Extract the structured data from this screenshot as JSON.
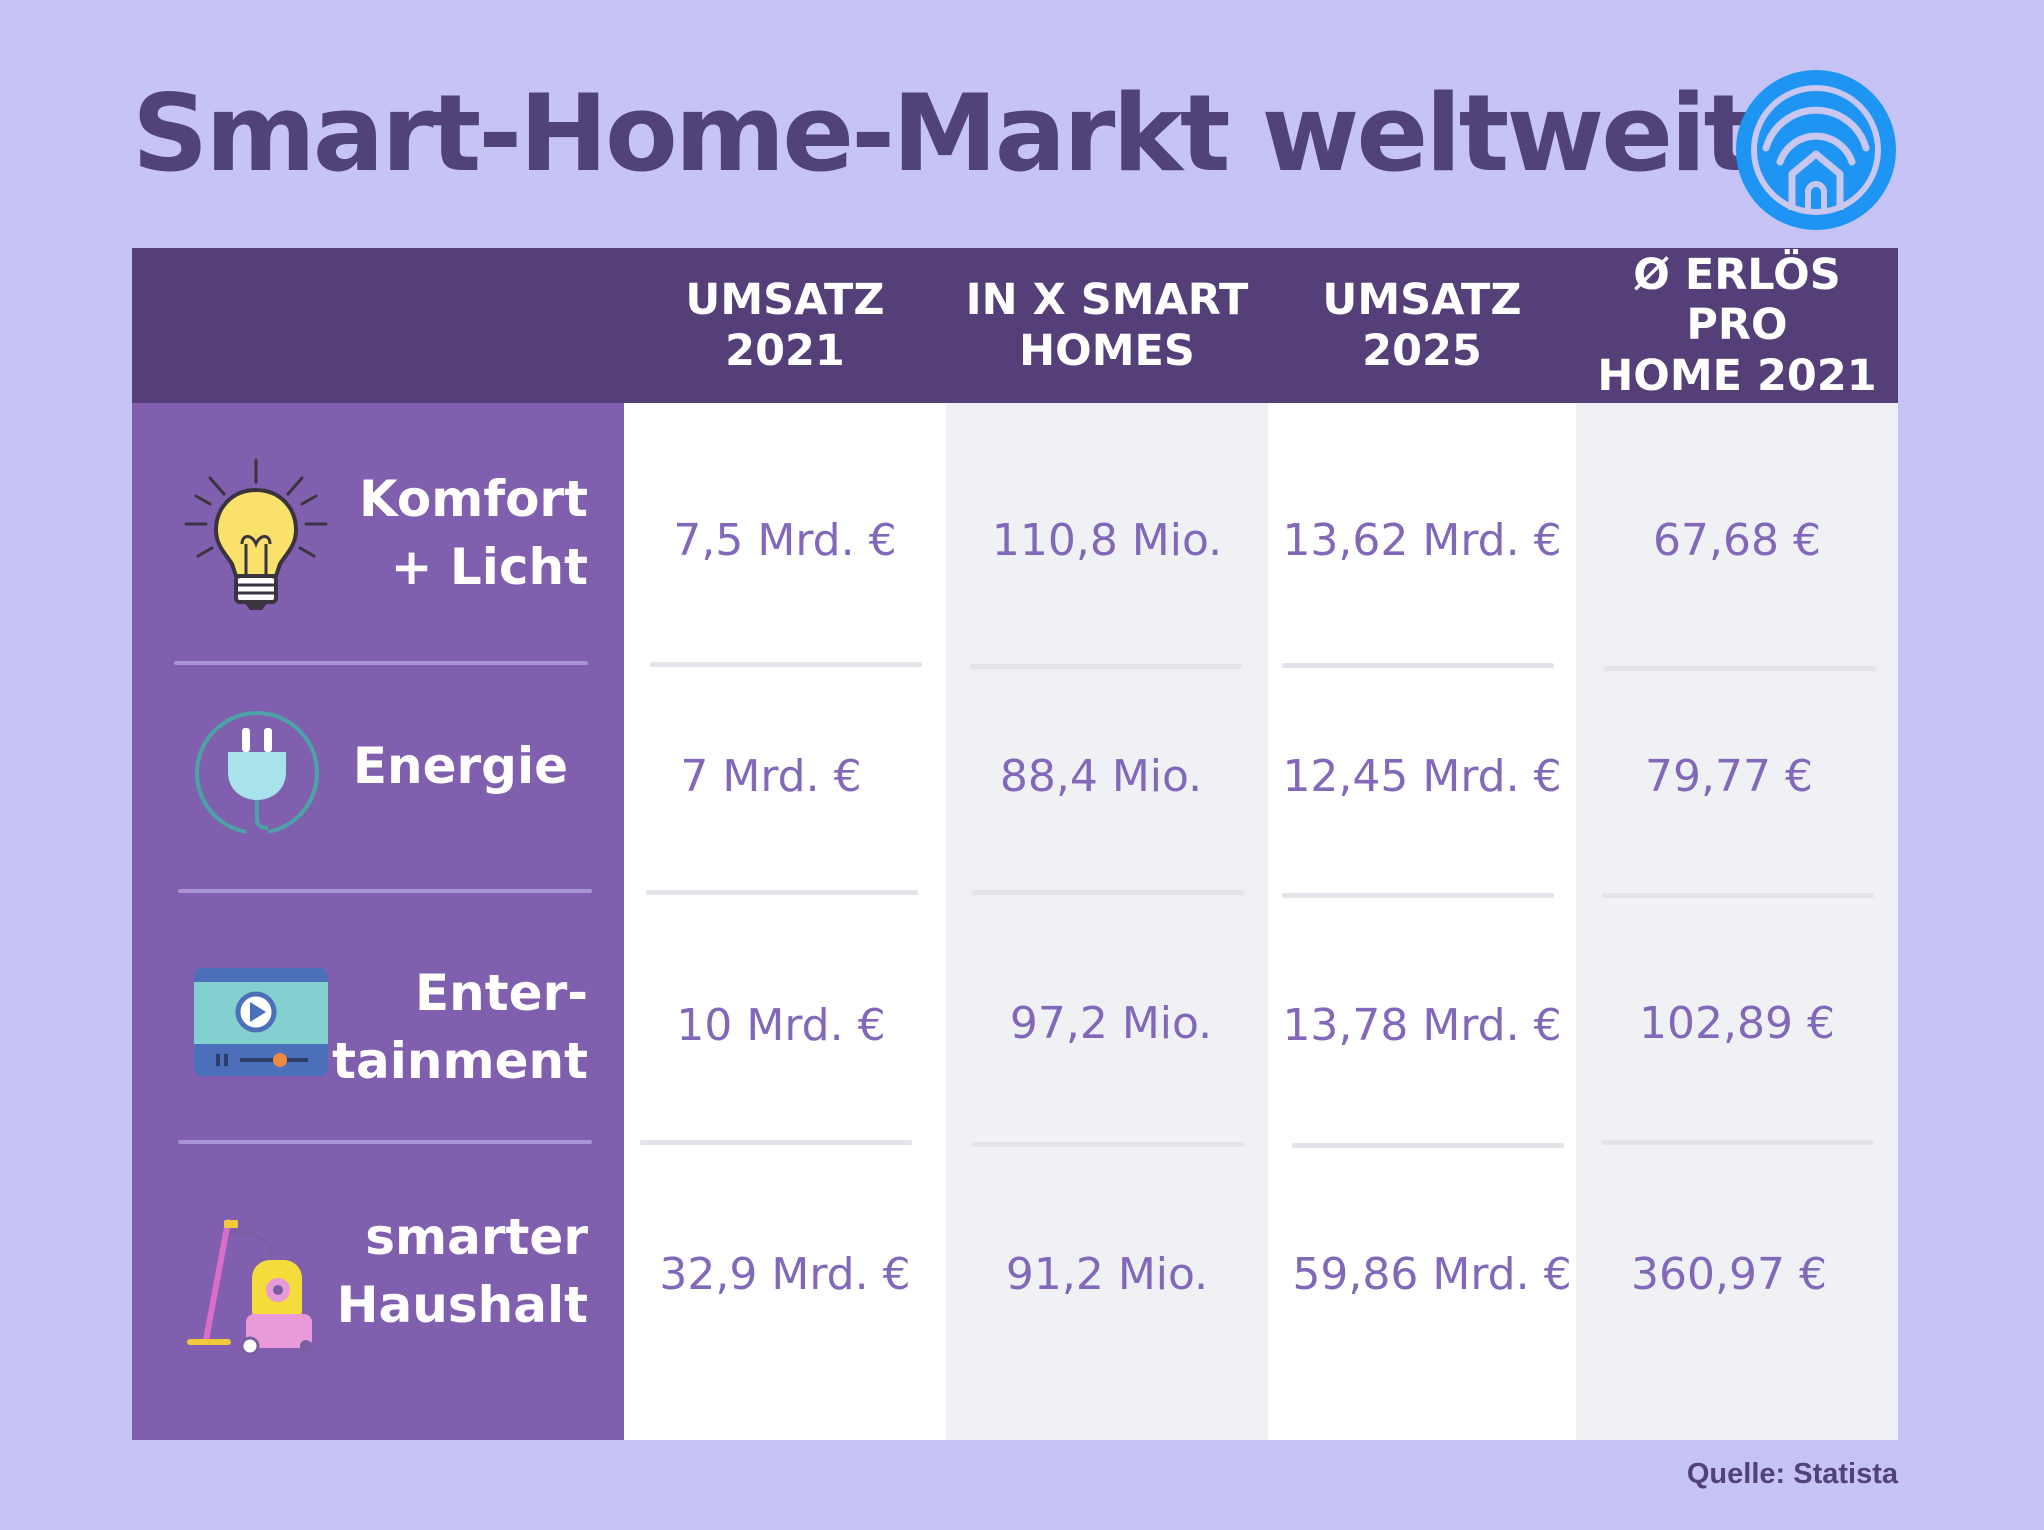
{
  "title": "Smart-Home-Markt weltweit",
  "source": "Quelle: Statista",
  "colors": {
    "background": "#c6c3f6",
    "header": "#543f78",
    "category_panel": "#805fae",
    "value_text": "#8268b9",
    "title_text": "#52427a",
    "logo": "#1e94f3"
  },
  "icons": {
    "logo": "smart-home-wifi-icon",
    "rows": [
      "light-bulb-icon",
      "power-plug-icon",
      "video-player-icon",
      "vacuum-cleaner-icon"
    ]
  },
  "chart_data": {
    "type": "table",
    "columns": [
      "",
      "UMSATZ 2021",
      "IN X SMART HOMES",
      "UMSATZ 2025",
      "Ø ERLÖS PRO HOME 2021"
    ],
    "header_lines": [
      [
        "",
        ""
      ],
      [
        "UMSATZ",
        "2021"
      ],
      [
        "IN X SMART",
        "HOMES"
      ],
      [
        "UMSATZ",
        "2025"
      ],
      [
        "Ø ERLÖS PRO",
        "HOME 2021"
      ]
    ],
    "rows": [
      {
        "category": "Komfort\n+ Licht",
        "values": [
          "7,5 Mrd. €",
          "110,8 Mio.",
          "13,62 Mrd. €",
          "67,68 €"
        ]
      },
      {
        "category": "Energie",
        "values": [
          "7 Mrd. €",
          "88,4 Mio.",
          "12,45 Mrd. €",
          "79,77 €"
        ]
      },
      {
        "category": "Enter-\ntainment",
        "values": [
          "10 Mrd. €",
          "97,2 Mio.",
          "13,78 Mrd. €",
          "102,89 €"
        ]
      },
      {
        "category": "smarter\nHaushalt",
        "values": [
          "32,9 Mrd. €",
          "91,2 Mio.",
          "59,86 Mrd. €",
          "360,97 €"
        ]
      }
    ]
  }
}
